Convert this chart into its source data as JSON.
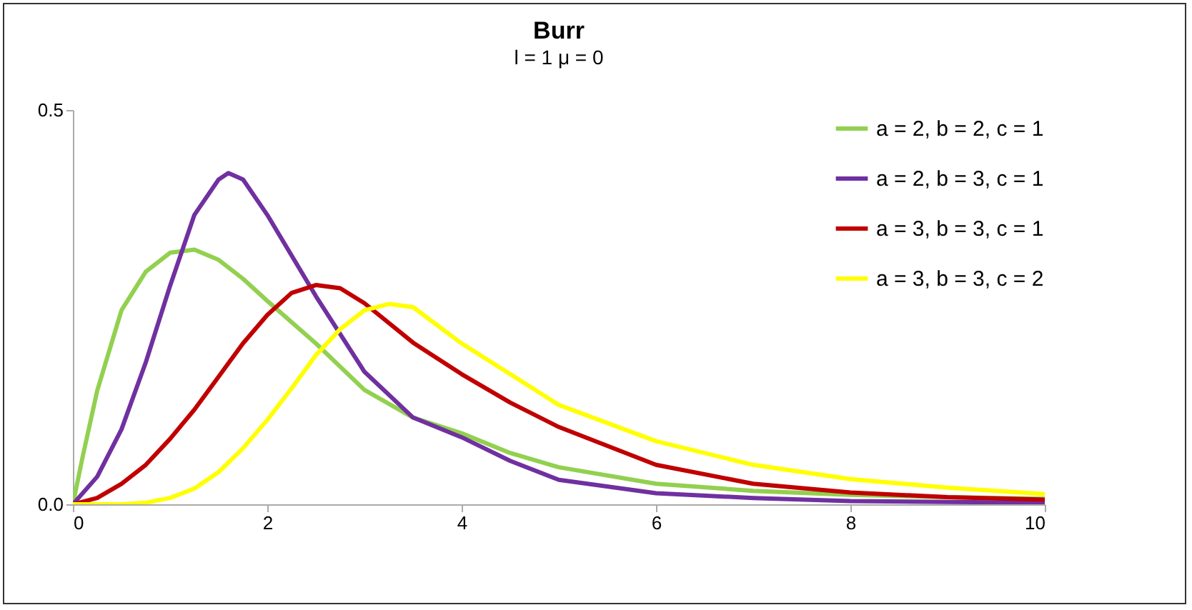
{
  "chart_data": {
    "type": "line",
    "title": "Burr",
    "subtitle": "l = 1   μ = 0",
    "xlim": [
      0,
      10
    ],
    "xticks": [
      0,
      2,
      4,
      6,
      8,
      10
    ],
    "ylim": [
      0,
      0.5
    ],
    "yticks": [
      {
        "value": 0,
        "label": "0.0"
      },
      {
        "value": 0.5,
        "label": "0.5"
      }
    ],
    "grid": false,
    "legend": "top right",
    "marker": "none",
    "line_style": "solid",
    "series": [
      {
        "name": "a = 2, b = 2, c = 1",
        "color": "#92d050",
        "x": [
          0,
          0.1,
          0.25,
          0.5,
          0.75,
          1,
          1.25,
          1.5,
          1.75,
          2,
          2.5,
          3,
          3.5,
          4,
          4.5,
          5,
          6,
          7,
          8,
          9,
          10
        ],
        "values": [
          0,
          0.06,
          0.144,
          0.246,
          0.295,
          0.319,
          0.323,
          0.31,
          0.286,
          0.258,
          0.204,
          0.145,
          0.11,
          0.09,
          0.065,
          0.047,
          0.026,
          0.017,
          0.012,
          0.009,
          0.007
        ]
      },
      {
        "name": "a = 2, b = 3, c = 1",
        "color": "#7030a0",
        "x": [
          0,
          0.25,
          0.5,
          0.75,
          1,
          1.25,
          1.5,
          1.6,
          1.75,
          2,
          2.5,
          3,
          3.5,
          4,
          4.5,
          5,
          6,
          7,
          8,
          9,
          10
        ],
        "values": [
          0,
          0.035,
          0.095,
          0.18,
          0.277,
          0.367,
          0.412,
          0.42,
          0.412,
          0.367,
          0.264,
          0.168,
          0.11,
          0.085,
          0.055,
          0.031,
          0.014,
          0.008,
          0.004,
          0.003,
          0.002
        ]
      },
      {
        "name": "a = 3, b = 3, c = 1",
        "color": "#c00000",
        "x": [
          0,
          0.25,
          0.5,
          0.75,
          1,
          1.25,
          1.5,
          1.75,
          2,
          2.25,
          2.5,
          2.75,
          3,
          3.5,
          4,
          4.5,
          5,
          6,
          7,
          8,
          9,
          10
        ],
        "values": [
          0,
          0.008,
          0.026,
          0.05,
          0.083,
          0.12,
          0.162,
          0.204,
          0.24,
          0.268,
          0.278,
          0.274,
          0.255,
          0.205,
          0.165,
          0.129,
          0.098,
          0.05,
          0.026,
          0.015,
          0.009,
          0.006
        ]
      },
      {
        "name": "a = 3, b = 3, c = 2",
        "color": "#ffff00",
        "x": [
          0,
          0.5,
          0.75,
          1,
          1.25,
          1.5,
          1.75,
          2,
          2.25,
          2.5,
          2.75,
          3,
          3.25,
          3.5,
          4,
          4.5,
          5,
          6,
          7,
          8,
          9,
          10
        ],
        "values": [
          0,
          0,
          0.002,
          0.008,
          0.02,
          0.041,
          0.071,
          0.107,
          0.147,
          0.189,
          0.222,
          0.246,
          0.254,
          0.25,
          0.204,
          0.165,
          0.126,
          0.08,
          0.05,
          0.032,
          0.021,
          0.013
        ]
      }
    ]
  }
}
